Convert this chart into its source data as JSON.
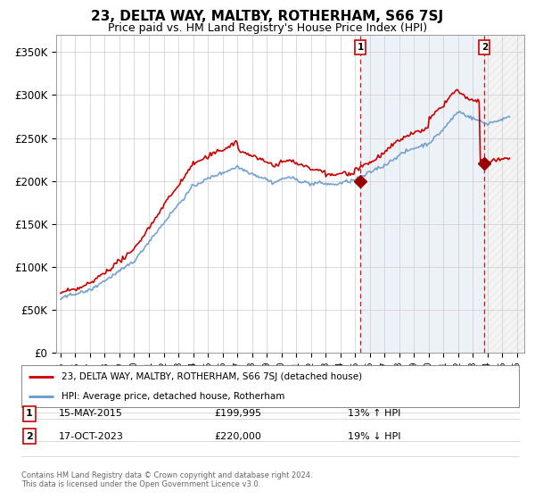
{
  "title": "23, DELTA WAY, MALTBY, ROTHERHAM, S66 7SJ",
  "subtitle": "Price paid vs. HM Land Registry's House Price Index (HPI)",
  "title_fontsize": 11,
  "subtitle_fontsize": 9,
  "ylabel_ticks": [
    "£0",
    "£50K",
    "£100K",
    "£150K",
    "£200K",
    "£250K",
    "£300K",
    "£350K"
  ],
  "ytick_values": [
    0,
    50000,
    100000,
    150000,
    200000,
    250000,
    300000,
    350000
  ],
  "ylim": [
    0,
    370000
  ],
  "xlim_start": 1994.7,
  "xlim_end": 2026.5,
  "hpi_color": "#6699CC",
  "hpi_fill_color": "#DDEEFF",
  "price_color": "#CC0000",
  "marker_color": "#990000",
  "vline_color": "#CC0000",
  "background_color": "#ffffff",
  "grid_color": "#cccccc",
  "legend_label_red": "23, DELTA WAY, MALTBY, ROTHERHAM, S66 7SJ (detached house)",
  "legend_label_blue": "HPI: Average price, detached house, Rotherham",
  "sale1_label": "1",
  "sale1_date": "15-MAY-2015",
  "sale1_price": "£199,995",
  "sale1_hpi": "13% ↑ HPI",
  "sale1_year": 2015.37,
  "sale1_value": 199995,
  "sale2_label": "2",
  "sale2_date": "17-OCT-2023",
  "sale2_price": "£220,000",
  "sale2_hpi": "19% ↓ HPI",
  "sale2_year": 2023.79,
  "sale2_value": 220000,
  "footnote1": "Contains HM Land Registry data © Crown copyright and database right 2024.",
  "footnote2": "This data is licensed under the Open Government Licence v3.0."
}
